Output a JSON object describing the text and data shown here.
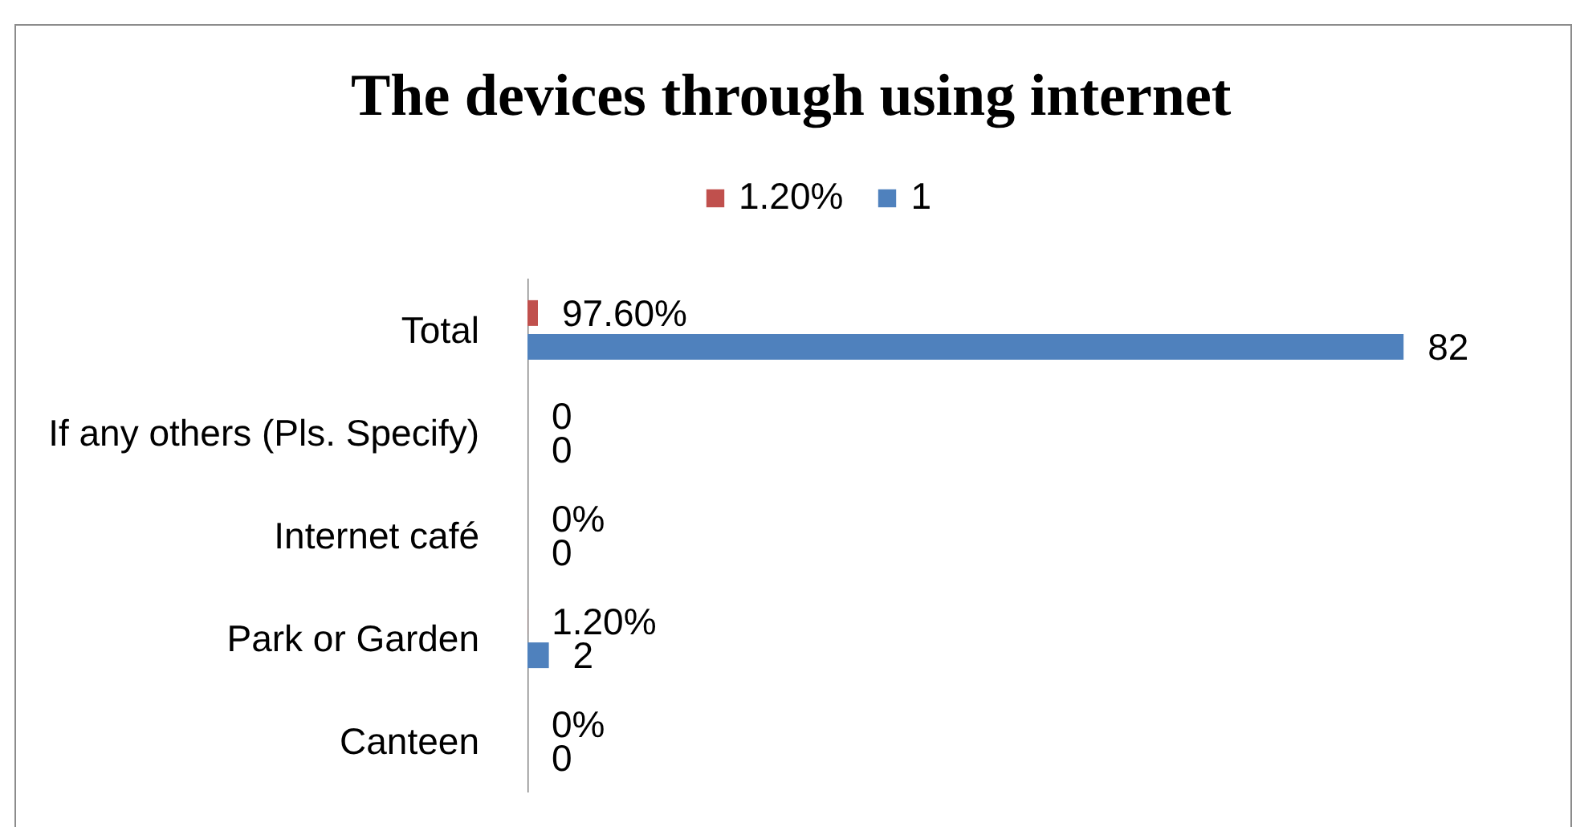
{
  "chart_data": {
    "type": "bar",
    "orientation": "horizontal",
    "title": "The devices through  using internet",
    "categories": [
      "Total",
      "If any others (Pls. Specify)",
      "Internet café",
      "Park or Garden",
      "Canteen"
    ],
    "series": [
      {
        "name": "1.20%",
        "color": "#c0504d",
        "values": [
          0.976,
          0,
          0,
          0.012,
          0
        ],
        "value_labels": [
          "97.60%",
          "0",
          "0%",
          "1.20%",
          "0%"
        ]
      },
      {
        "name": "1",
        "color": "#4f81bd",
        "values": [
          82,
          0,
          0,
          2,
          0
        ],
        "value_labels": [
          "82",
          "0",
          "0",
          "2",
          "0"
        ]
      }
    ],
    "legend": "top"
  }
}
